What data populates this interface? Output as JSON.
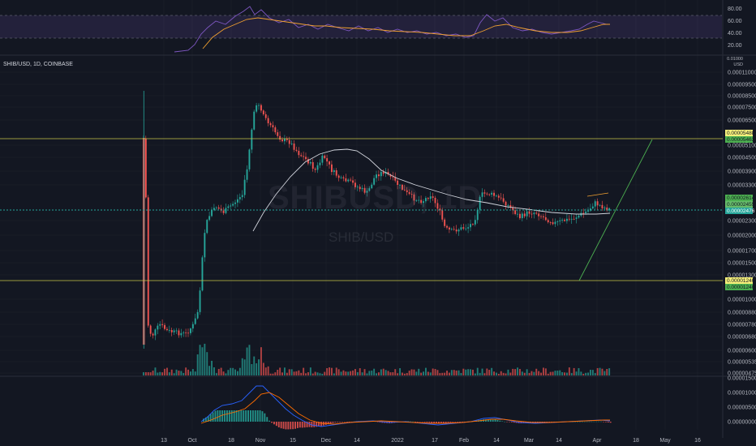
{
  "symbol_title": "SHIB/USD, 1D, COINBASE",
  "watermark_ticker": "SHIBUSD, 1D",
  "watermark_pair": "SHIB/USD",
  "price_unit": {
    "line1": "0.01000",
    "line2": "USD"
  },
  "colors": {
    "background": "#131722",
    "up": "#26a69a",
    "down": "#ef5350",
    "grid": "#1e222d",
    "ma_line": "#d1d4dc",
    "level_line": "#c8c54a",
    "trend_line": "#4caf50",
    "rsi_band": "#7e57c2",
    "rsi_line": "#7e57c2",
    "rsi_ma": "#f0a030",
    "macd_line": "#2962ff",
    "signal_line": "#ff6d00",
    "current_price": "#26a69a"
  },
  "rsi_axis": [
    "80.00",
    "60.00",
    "40.00",
    "20.00"
  ],
  "price_axis": [
    "0.00011000",
    "0.00009500",
    "0.00008500",
    "0.00007500",
    "0.00006500",
    "0.00005100",
    "0.00004500",
    "0.00003900",
    "0.00003300",
    "0.00002300",
    "0.00002000",
    "0.00001700",
    "0.00001500",
    "0.00001300",
    "0.00001000",
    "0.00000880",
    "0.00000780",
    "0.00000680",
    "0.00000600",
    "0.00000535",
    "0.00000475"
  ],
  "macd_axis": [
    "0.00001500",
    "0.00001000",
    "0.00000500",
    "0.00000000"
  ],
  "price_tags": {
    "upper_level_a": "0.00005488",
    "upper_level_b": "0.00005463",
    "current_a": "0.00002614",
    "current_b": "0.00002455",
    "current_price": "0.00002476",
    "lower_level_a": "0.00001240",
    "lower_level_b": "0.00001240"
  },
  "time_axis": [
    "13",
    "Oct",
    "18",
    "Nov",
    "15",
    "Dec",
    "14",
    "2022",
    "17",
    "Feb",
    "14",
    "Mar",
    "14",
    "Apr",
    "18",
    "May",
    "16"
  ],
  "chart_data": {
    "type": "candlestick",
    "title": "SHIB/USD, 1D, COINBASE",
    "panes": [
      "rsi",
      "price",
      "volume",
      "macd"
    ],
    "price_scale": "log",
    "horizontal_levels": [
      5.488e-05,
      1.24e-05
    ],
    "current_price": 2.476e-05
  }
}
